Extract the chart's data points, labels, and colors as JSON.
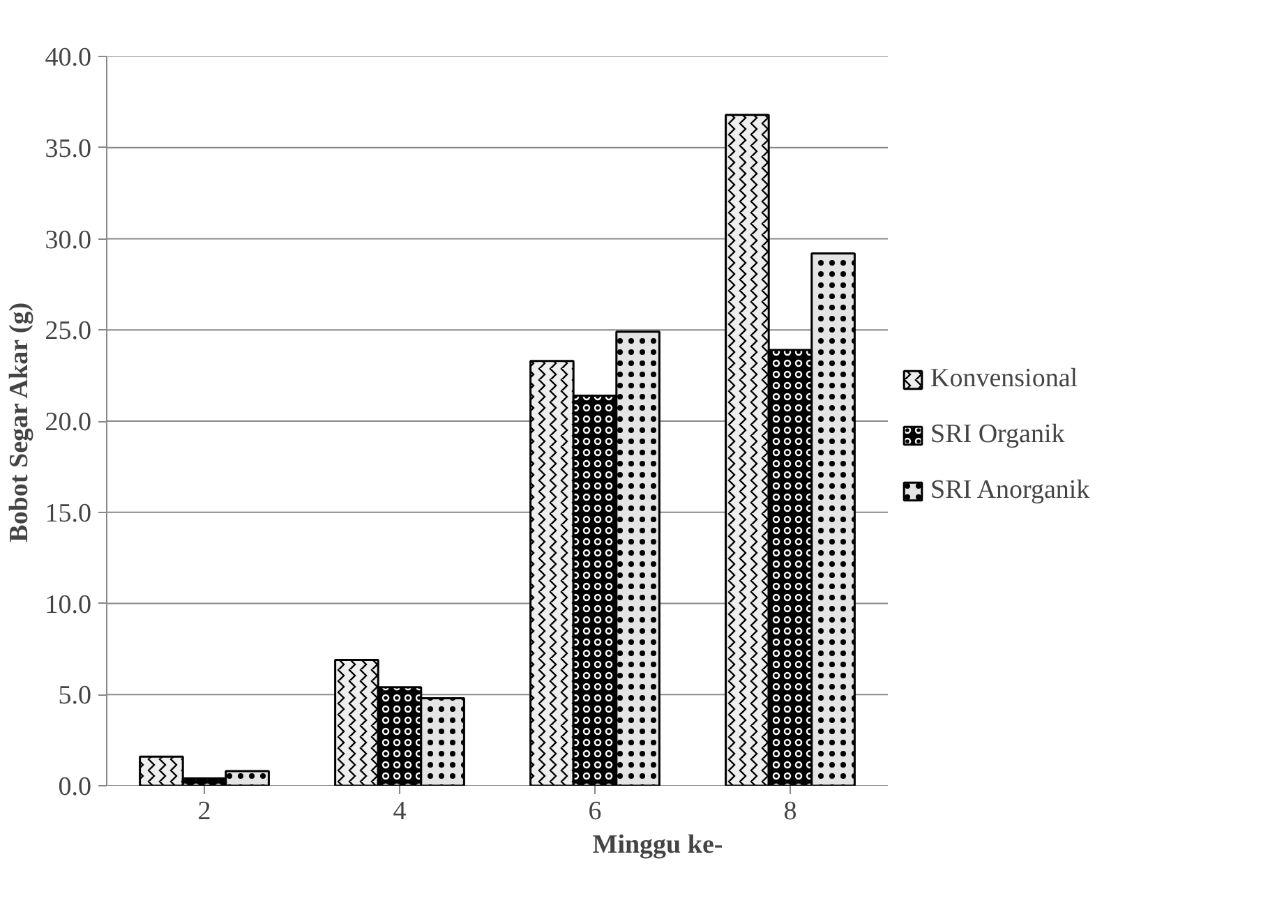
{
  "chart_data": {
    "type": "bar",
    "xlabel": "Minggu ke-",
    "ylabel": "Bobot Segar Akar (g)",
    "categories": [
      "2",
      "4",
      "6",
      "8"
    ],
    "series": [
      {
        "name": "Konvensional",
        "color": "#eeeeee",
        "values": [
          1.6,
          6.9,
          23.3,
          36.8
        ]
      },
      {
        "name": "SRI Organik",
        "color": "#000000",
        "values": [
          0.4,
          5.4,
          21.4,
          23.9
        ]
      },
      {
        "name": "SRI Anorganik",
        "color": "#e4e4e4",
        "values": [
          0.8,
          4.8,
          24.9,
          29.2
        ]
      }
    ],
    "ylim": [
      0,
      40
    ],
    "yticks": [
      {
        "value": 0,
        "label": "0.0"
      },
      {
        "value": 5,
        "label": "5.0"
      },
      {
        "value": 10,
        "label": "10.0"
      },
      {
        "value": 15,
        "label": "15.0"
      },
      {
        "value": 20,
        "label": "20.0"
      },
      {
        "value": 25,
        "label": "25.0"
      },
      {
        "value": 30,
        "label": "30.0"
      },
      {
        "value": 35,
        "label": "35.0"
      },
      {
        "value": 40,
        "label": "40.0"
      }
    ],
    "grid": "y",
    "legend": "right"
  }
}
